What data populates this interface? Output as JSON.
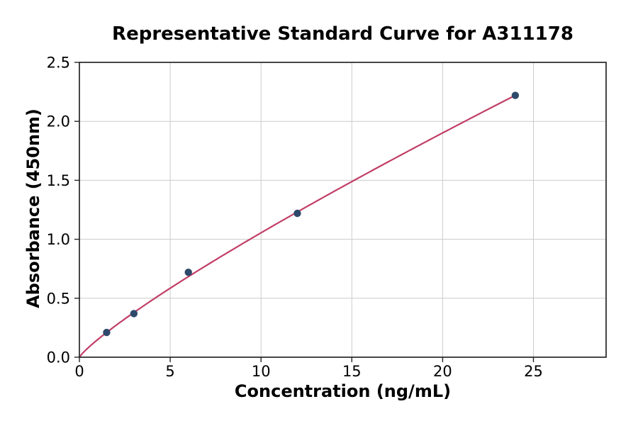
{
  "chart_data": {
    "type": "scatter",
    "title": "Representative Standard Curve for A311178",
    "xlabel": "Concentration (ng/mL)",
    "ylabel": "Absorbance (450nm)",
    "xlim": [
      0,
      29
    ],
    "ylim": [
      0,
      2.5
    ],
    "xticks": [
      0,
      5,
      10,
      15,
      20,
      25
    ],
    "xtick_labels": [
      "0",
      "5",
      "10",
      "15",
      "20",
      "25"
    ],
    "yticks": [
      0,
      0.5,
      1.0,
      1.5,
      2.0,
      2.5
    ],
    "ytick_labels": [
      "0.0",
      "0.5",
      "1.0",
      "1.5",
      "2.0",
      "2.5"
    ],
    "grid": true,
    "legend": null,
    "series": [
      {
        "name": "standard-points",
        "type": "scatter",
        "marker_color": "#2e4a6b",
        "points": [
          {
            "x": 1.5,
            "y": 0.21
          },
          {
            "x": 3,
            "y": 0.37
          },
          {
            "x": 6,
            "y": 0.72
          },
          {
            "x": 12,
            "y": 1.22
          },
          {
            "x": 24,
            "y": 2.22
          }
        ]
      },
      {
        "name": "fit-curve",
        "type": "line",
        "line_color": "#c13e66",
        "fit": {
          "model": "power",
          "a": 0.1489,
          "b": 0.8503,
          "x_start": 0,
          "x_end": 24
        }
      }
    ],
    "colors": {
      "curve": "#c13e66",
      "marker": "#2e4a6b",
      "grid": "#cccccc",
      "axis": "#262626",
      "text": "#000000",
      "background": "#ffffff"
    }
  }
}
